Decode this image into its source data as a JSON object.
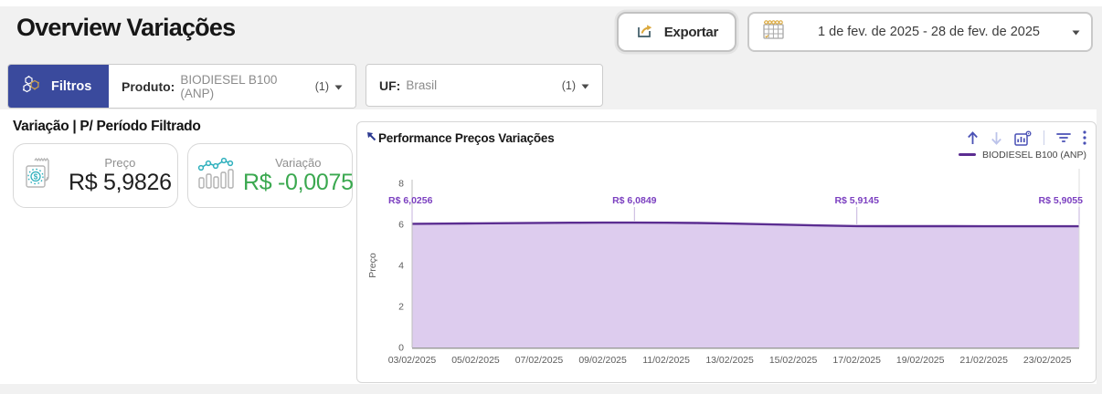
{
  "page": {
    "title": "Overview Variações"
  },
  "header": {
    "export_label": "Exportar",
    "date_range": "1 de fev. de 2025 - 28 de fev. de 2025",
    "icons": [
      "export-icon",
      "calendar-icon",
      "caret-down-icon"
    ]
  },
  "filters": {
    "filters_label": "Filtros",
    "produto": {
      "label": "Produto:",
      "value": "BIODIESEL B100 (ANP)",
      "count": "(1)"
    },
    "uf": {
      "label": "UF:",
      "value": "Brasil",
      "count": "(1)"
    }
  },
  "kpi": {
    "section_title": "Variação | P/ Período Filtrado",
    "cards": [
      {
        "label": "Preço",
        "value": "R$ 5,9826",
        "icon": "receipt-money-icon"
      },
      {
        "label": "Variação",
        "value": "R$ -0,0075",
        "icon": "bar-trend-icon"
      }
    ]
  },
  "chart": {
    "title": "Performance Preços Variações",
    "legend_label": "BIODIESEL B100 (ANP)",
    "toolbar_icons": [
      "sort-ascending-icon",
      "sort-descending-icon",
      "chart-settings-icon",
      "filter-funnel-icon",
      "more-options-icon"
    ]
  },
  "colors": {
    "filtros_blue": "#3a4a9d",
    "toolbar_indigo": "#4a51b5",
    "line_purple": "#5b2d91",
    "area_fill": "#ddccee",
    "data_label_purple": "#7b3fc0",
    "variation_green": "#3aa84f",
    "icon_teal": "#2fb0bd",
    "icon_gold": "#dba83c"
  },
  "chart_data": {
    "type": "area",
    "title": "Performance Preços Variações",
    "ylabel": "Preço",
    "ylim": [
      0,
      8
    ],
    "yticks": [
      0,
      2,
      4,
      6,
      8
    ],
    "x_tick_labels": [
      "03/02/2025",
      "05/02/2025",
      "07/02/2025",
      "09/02/2025",
      "11/02/2025",
      "13/02/2025",
      "15/02/2025",
      "17/02/2025",
      "19/02/2025",
      "21/02/2025",
      "23/02/2025"
    ],
    "series": [
      {
        "name": "BIODIESEL B100 (ANP)",
        "color": "#5b2d91",
        "fill": "#ddccee",
        "x": [
          "03/02/2025",
          "04/02/2025",
          "05/02/2025",
          "06/02/2025",
          "07/02/2025",
          "08/02/2025",
          "09/02/2025",
          "10/02/2025",
          "11/02/2025",
          "12/02/2025",
          "13/02/2025",
          "14/02/2025",
          "15/02/2025",
          "16/02/2025",
          "17/02/2025",
          "18/02/2025",
          "19/02/2025",
          "20/02/2025",
          "21/02/2025",
          "22/02/2025",
          "23/02/2025",
          "24/02/2025"
        ],
        "values": [
          6.0256,
          6.034,
          6.048,
          6.06,
          6.07,
          6.078,
          6.083,
          6.0849,
          6.08,
          6.065,
          6.04,
          6.01,
          5.975,
          5.94,
          5.9145,
          5.912,
          5.91,
          5.909,
          5.908,
          5.907,
          5.906,
          5.9055
        ]
      }
    ],
    "labeled_points": [
      {
        "x": "03/02/2025",
        "index": 0,
        "label": "R$ 6,0256",
        "value": 6.0256
      },
      {
        "x": "10/02/2025",
        "index": 7,
        "label": "R$ 6,0849",
        "value": 6.0849
      },
      {
        "x": "17/02/2025",
        "index": 14,
        "label": "R$ 5,9145",
        "value": 5.9145
      },
      {
        "x": "24/02/2025",
        "index": 21,
        "label": "R$ 5,9055",
        "value": 5.9055
      }
    ],
    "legend_position": "top-right",
    "grid": false
  }
}
